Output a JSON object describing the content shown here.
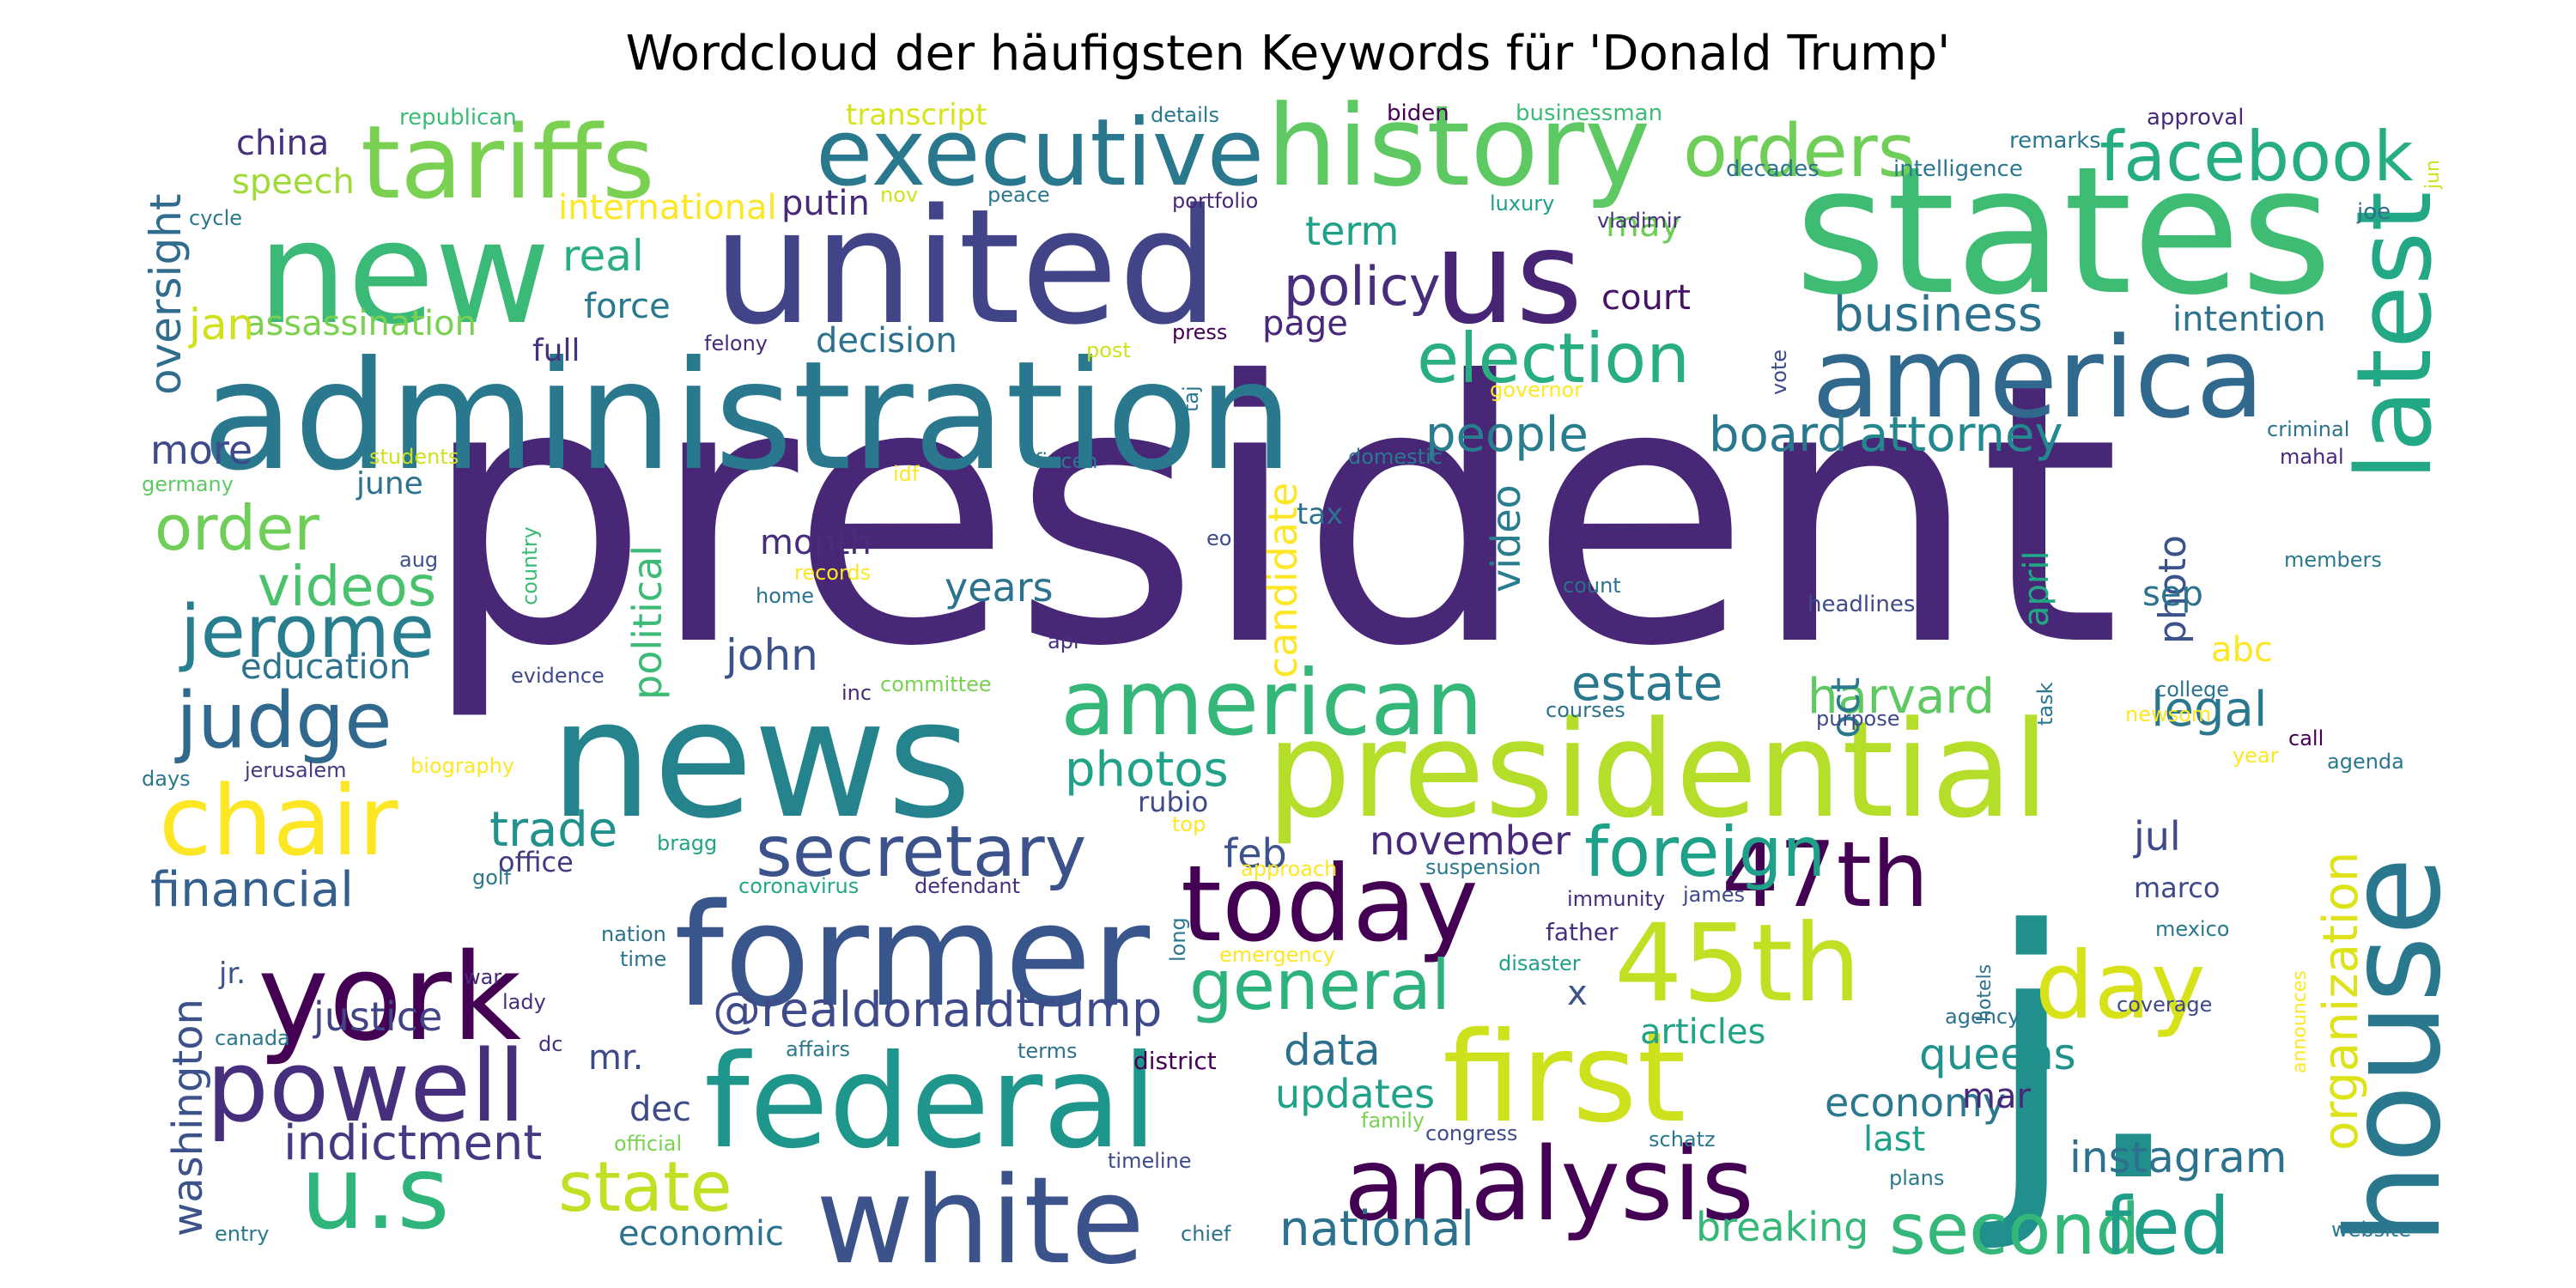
{
  "chart_data": {
    "type": "wordcloud",
    "title": "Wordcloud der häufigsten Keywords für 'Donald Trump'",
    "colormap": "viridis",
    "background": "#ffffff",
    "words": [
      {
        "text": "president",
        "weight": 100,
        "color": "#482777"
      },
      {
        "text": "states",
        "weight": 62,
        "color": "#3fbc73"
      },
      {
        "text": "news",
        "weight": 56,
        "color": "#25838e"
      },
      {
        "text": "united",
        "weight": 54,
        "color": "#414487"
      },
      {
        "text": "administration",
        "weight": 52,
        "color": "#2a788e"
      },
      {
        "text": "new",
        "weight": 50,
        "color": "#3aba76"
      },
      {
        "text": "former",
        "weight": 49,
        "color": "#39568c"
      },
      {
        "text": "presidential",
        "weight": 47,
        "color": "#b5de2b"
      },
      {
        "text": "j.",
        "weight": 60,
        "color": "#21908d"
      },
      {
        "text": "us",
        "weight": 46,
        "color": "#482475"
      },
      {
        "text": "federal",
        "weight": 45,
        "color": "#1f968b"
      },
      {
        "text": "house",
        "weight": 45,
        "color": "#2a788e"
      },
      {
        "text": "first",
        "weight": 44,
        "color": "#cde11d"
      },
      {
        "text": "york",
        "weight": 43,
        "color": "#440154"
      },
      {
        "text": "white",
        "weight": 42,
        "color": "#3b528b"
      },
      {
        "text": "history",
        "weight": 40,
        "color": "#5ec962"
      },
      {
        "text": "america",
        "weight": 39,
        "color": "#31688e"
      },
      {
        "text": "45th",
        "weight": 38,
        "color": "#c2df23"
      },
      {
        "text": "today",
        "weight": 37,
        "color": "#440154"
      },
      {
        "text": "tariffs",
        "weight": 36,
        "color": "#7ad151"
      },
      {
        "text": "u.s",
        "weight": 36,
        "color": "#2fb47c"
      },
      {
        "text": "analysis",
        "weight": 35,
        "color": "#440154"
      },
      {
        "text": "latest",
        "weight": 36,
        "color": "#22a884"
      },
      {
        "text": "powell",
        "weight": 35,
        "color": "#46307e"
      },
      {
        "text": "chair",
        "weight": 34,
        "color": "#fde725"
      },
      {
        "text": "executive",
        "weight": 33,
        "color": "#2a788e"
      },
      {
        "text": "day",
        "weight": 33,
        "color": "#d8e219"
      },
      {
        "text": "american",
        "weight": 32,
        "color": "#35b779"
      },
      {
        "text": "47th",
        "weight": 32,
        "color": "#440154"
      },
      {
        "text": "second",
        "weight": 25,
        "color": "#35b779"
      },
      {
        "text": "fed",
        "weight": 28,
        "color": "#1f9e89"
      },
      {
        "text": "judge",
        "weight": 27,
        "color": "#31688e"
      },
      {
        "text": "jerome",
        "weight": 26,
        "color": "#287d8e"
      },
      {
        "text": "secretary",
        "weight": 25,
        "color": "#3b528b"
      },
      {
        "text": "orders",
        "weight": 26,
        "color": "#6ece58"
      },
      {
        "text": "facebook",
        "weight": 24,
        "color": "#26ad81"
      },
      {
        "text": "election",
        "weight": 24,
        "color": "#29af7f"
      },
      {
        "text": "foreign",
        "weight": 24,
        "color": "#1fa088"
      },
      {
        "text": "state",
        "weight": 24,
        "color": "#c2df23"
      },
      {
        "text": "general",
        "weight": 24,
        "color": "#2db27d"
      },
      {
        "text": "order",
        "weight": 22,
        "color": "#6ece58"
      },
      {
        "text": "videos",
        "weight": 20,
        "color": "#4ac16d"
      },
      {
        "text": "policy",
        "weight": 19,
        "color": "#472d7b"
      },
      {
        "text": "@realdonaldtrump",
        "weight": 18,
        "color": "#3e4a89"
      },
      {
        "text": "indictment",
        "weight": 18,
        "color": "#443a83"
      },
      {
        "text": "national",
        "weight": 17,
        "color": "#2c728e"
      },
      {
        "text": "organization",
        "weight": 17,
        "color": "#dde318"
      },
      {
        "text": "business",
        "weight": 17,
        "color": "#2c728e"
      },
      {
        "text": "board",
        "weight": 17,
        "color": "#2a788e"
      },
      {
        "text": "attorney",
        "weight": 17,
        "color": "#23898e"
      },
      {
        "text": "people",
        "weight": 17,
        "color": "#287d8e"
      },
      {
        "text": "trade",
        "weight": 17,
        "color": "#21918c"
      },
      {
        "text": "photos",
        "weight": 17,
        "color": "#1fa287"
      },
      {
        "text": "financial",
        "weight": 17,
        "color": "#355f8d"
      },
      {
        "text": "estate",
        "weight": 17,
        "color": "#2a788e"
      },
      {
        "text": "harvard",
        "weight": 17,
        "color": "#5ec962"
      },
      {
        "text": "legal",
        "weight": 17,
        "color": "#2a788e"
      },
      {
        "text": "queens",
        "weight": 15,
        "color": "#21918c"
      },
      {
        "text": "instagram",
        "weight": 15,
        "color": "#2c728e"
      },
      {
        "text": "breaking",
        "weight": 14,
        "color": "#35b779"
      },
      {
        "text": "data",
        "weight": 15,
        "color": "#2d708e"
      },
      {
        "text": "updates",
        "weight": 14,
        "color": "#1fa287"
      },
      {
        "text": "november",
        "weight": 14,
        "color": "#472a7a"
      },
      {
        "text": "washington",
        "weight": 14,
        "color": "#3b528b"
      },
      {
        "text": "justice",
        "weight": 14,
        "color": "#414487"
      },
      {
        "text": "economy",
        "weight": 14,
        "color": "#2a788e"
      },
      {
        "text": "oversight",
        "weight": 15,
        "color": "#2f6c8e"
      },
      {
        "text": "political",
        "weight": 14,
        "color": "#3bbb75"
      },
      {
        "text": "candidate",
        "weight": 14,
        "color": "#fde725"
      },
      {
        "text": "video",
        "weight": 14,
        "color": "#287d8e"
      },
      {
        "text": "real",
        "weight": 15,
        "color": "#29af7f"
      },
      {
        "text": "term",
        "weight": 14,
        "color": "#1fa088"
      },
      {
        "text": "john",
        "weight": 14,
        "color": "#3b528b"
      },
      {
        "text": "years",
        "weight": 14,
        "color": "#2c728e"
      },
      {
        "text": "month",
        "weight": 12,
        "color": "#472d7b"
      },
      {
        "text": "education",
        "weight": 12,
        "color": "#2c728e"
      },
      {
        "text": "international",
        "weight": 11,
        "color": "#fde725"
      },
      {
        "text": "assassination",
        "weight": 11,
        "color": "#7ad151"
      },
      {
        "text": "decision",
        "weight": 11,
        "color": "#2c728e"
      },
      {
        "text": "force",
        "weight": 11,
        "color": "#2a788e"
      },
      {
        "text": "court",
        "weight": 11,
        "color": "#471365"
      },
      {
        "text": "page",
        "weight": 11,
        "color": "#482878"
      },
      {
        "text": "more",
        "weight": 13,
        "color": "#3e4a89"
      },
      {
        "text": "jan",
        "weight": 13,
        "color": "#d0e11c"
      },
      {
        "text": "feb",
        "weight": 12,
        "color": "#3b528b"
      },
      {
        "text": "oct",
        "weight": 12,
        "color": "#2a788e"
      },
      {
        "text": "jul",
        "weight": 11,
        "color": "#3e4a89"
      },
      {
        "text": "dec",
        "weight": 11,
        "color": "#3e4a89"
      },
      {
        "text": "mar",
        "weight": 11,
        "color": "#482878"
      },
      {
        "text": "last",
        "weight": 11,
        "color": "#1fa088"
      },
      {
        "text": "mr.",
        "weight": 11,
        "color": "#3e4a89"
      },
      {
        "text": "economic",
        "weight": 11,
        "color": "#2c728e"
      },
      {
        "text": "photo",
        "weight": 12,
        "color": "#3b528b"
      },
      {
        "text": "april",
        "weight": 11,
        "color": "#22a884"
      },
      {
        "text": "china",
        "weight": 10,
        "color": "#46307e"
      },
      {
        "text": "speech",
        "weight": 10,
        "color": "#a0da39"
      },
      {
        "text": "putin",
        "weight": 10,
        "color": "#482878"
      },
      {
        "text": "may",
        "weight": 10,
        "color": "#6ece58"
      },
      {
        "text": "intention",
        "weight": 10,
        "color": "#2c728e"
      },
      {
        "text": "full",
        "weight": 10,
        "color": "#46307e"
      },
      {
        "text": "june",
        "weight": 10,
        "color": "#2c728e"
      },
      {
        "text": "sep",
        "weight": 10,
        "color": "#2c728e"
      },
      {
        "text": "abc",
        "weight": 10,
        "color": "#fde725"
      },
      {
        "text": "marco",
        "weight": 9,
        "color": "#3e4a89"
      },
      {
        "text": "tax",
        "weight": 9,
        "color": "#2c728e"
      },
      {
        "text": "office",
        "weight": 9,
        "color": "#443a83"
      },
      {
        "text": "rubio",
        "weight": 8,
        "color": "#3e4a89"
      },
      {
        "text": "articles",
        "weight": 10,
        "color": "#20a386"
      },
      {
        "text": "x",
        "weight": 10,
        "color": "#3b528b"
      },
      {
        "text": "jr.",
        "weight": 8,
        "color": "#3b528b"
      },
      {
        "text": "transcript",
        "weight": 7,
        "color": "#d8e219"
      },
      {
        "text": "republican",
        "weight": 6,
        "color": "#3bbb75"
      },
      {
        "text": "biden",
        "weight": 6,
        "color": "#440154"
      },
      {
        "text": "businessman",
        "weight": 6,
        "color": "#3bbb75"
      },
      {
        "text": "details",
        "weight": 6,
        "color": "#2a788e"
      },
      {
        "text": "approval",
        "weight": 6,
        "color": "#482878"
      },
      {
        "text": "remarks",
        "weight": 6,
        "color": "#2a788e"
      },
      {
        "text": "decades",
        "weight": 6,
        "color": "#2c728e"
      },
      {
        "text": "intelligence",
        "weight": 6,
        "color": "#2a788e"
      },
      {
        "text": "joe",
        "weight": 6,
        "color": "#2c728e"
      },
      {
        "text": "jun",
        "weight": 5,
        "color": "#cde11d"
      },
      {
        "text": "cycle",
        "weight": 5,
        "color": "#2a788e"
      },
      {
        "text": "nov",
        "weight": 5,
        "color": "#d0e11c"
      },
      {
        "text": "peace",
        "weight": 5,
        "color": "#2a788e"
      },
      {
        "text": "portfolio",
        "weight": 5,
        "color": "#482878"
      },
      {
        "text": "luxury",
        "weight": 5,
        "color": "#1f9e89"
      },
      {
        "text": "vladimir",
        "weight": 5,
        "color": "#46307e"
      },
      {
        "text": "felony",
        "weight": 5,
        "color": "#472a7a"
      },
      {
        "text": "post",
        "weight": 5,
        "color": "#d0e11c"
      },
      {
        "text": "press",
        "weight": 5,
        "color": "#440154"
      },
      {
        "text": "taj",
        "weight": 5,
        "color": "#2a788e"
      },
      {
        "text": "governor",
        "weight": 5,
        "color": "#fde725"
      },
      {
        "text": "vote",
        "weight": 5,
        "color": "#3e4a89"
      },
      {
        "text": "criminal",
        "weight": 5,
        "color": "#2c728e"
      },
      {
        "text": "mahal",
        "weight": 5,
        "color": "#482878"
      },
      {
        "text": "members",
        "weight": 5,
        "color": "#2a788e"
      },
      {
        "text": "students",
        "weight": 5,
        "color": "#cde11d"
      },
      {
        "text": "germany",
        "weight": 5,
        "color": "#5ec962"
      },
      {
        "text": "idf",
        "weight": 5,
        "color": "#fde725"
      },
      {
        "text": "fincen",
        "weight": 5,
        "color": "#2a788e"
      },
      {
        "text": "domestic",
        "weight": 5,
        "color": "#2a788e"
      },
      {
        "text": "aug",
        "weight": 5,
        "color": "#3b528b"
      },
      {
        "text": "eo",
        "weight": 5,
        "color": "#3e4a89"
      },
      {
        "text": "country",
        "weight": 5,
        "color": "#3bbb75"
      },
      {
        "text": "records",
        "weight": 5,
        "color": "#fde725"
      },
      {
        "text": "home",
        "weight": 5,
        "color": "#2c728e"
      },
      {
        "text": "apr",
        "weight": 5,
        "color": "#46307e"
      },
      {
        "text": "count",
        "weight": 5,
        "color": "#2c728e"
      },
      {
        "text": "headlines",
        "weight": 5,
        "color": "#3e4a89"
      },
      {
        "text": "evidence",
        "weight": 5,
        "color": "#3e4a89"
      },
      {
        "text": "inc",
        "weight": 5,
        "color": "#482878"
      },
      {
        "text": "committee",
        "weight": 5,
        "color": "#7ad151"
      },
      {
        "text": "courses",
        "weight": 5,
        "color": "#2c728e"
      },
      {
        "text": "task",
        "weight": 5,
        "color": "#2a788e"
      },
      {
        "text": "purpose",
        "weight": 5,
        "color": "#3e4a89"
      },
      {
        "text": "college",
        "weight": 5,
        "color": "#2c728e"
      },
      {
        "text": "newsom",
        "weight": 5,
        "color": "#fde725"
      },
      {
        "text": "call",
        "weight": 5,
        "color": "#440154"
      },
      {
        "text": "agenda",
        "weight": 5,
        "color": "#2a788e"
      },
      {
        "text": "days",
        "weight": 5,
        "color": "#2a788e"
      },
      {
        "text": "jerusalem",
        "weight": 5,
        "color": "#443a83"
      },
      {
        "text": "biography",
        "weight": 5,
        "color": "#fde725"
      },
      {
        "text": "year",
        "weight": 5,
        "color": "#fde725"
      },
      {
        "text": "bragg",
        "weight": 5,
        "color": "#20a386"
      },
      {
        "text": "top",
        "weight": 5,
        "color": "#fde725"
      },
      {
        "text": "approach",
        "weight": 5,
        "color": "#fde725"
      },
      {
        "text": "suspension",
        "weight": 5,
        "color": "#2a788e"
      },
      {
        "text": "golf",
        "weight": 5,
        "color": "#2a788e"
      },
      {
        "text": "coronavirus",
        "weight": 5,
        "color": "#22a884"
      },
      {
        "text": "defendant",
        "weight": 5,
        "color": "#46307e"
      },
      {
        "text": "immunity",
        "weight": 5,
        "color": "#46307e"
      },
      {
        "text": "james",
        "weight": 5,
        "color": "#3e4a89"
      },
      {
        "text": "nation",
        "weight": 5,
        "color": "#2c728e"
      },
      {
        "text": "long",
        "weight": 5,
        "color": "#2a788e"
      },
      {
        "text": "father",
        "weight": 6,
        "color": "#46307e"
      },
      {
        "text": "mexico",
        "weight": 5,
        "color": "#2a788e"
      },
      {
        "text": "time",
        "weight": 5,
        "color": "#2c728e"
      },
      {
        "text": "emergency",
        "weight": 5,
        "color": "#fde725"
      },
      {
        "text": "disaster",
        "weight": 5,
        "color": "#1fa088"
      },
      {
        "text": "hotels",
        "weight": 5,
        "color": "#2c728e"
      },
      {
        "text": "war",
        "weight": 5,
        "color": "#482878"
      },
      {
        "text": "lady",
        "weight": 5,
        "color": "#46307e"
      },
      {
        "text": "agency",
        "weight": 5,
        "color": "#2c728e"
      },
      {
        "text": "coverage",
        "weight": 5,
        "color": "#3e4a89"
      },
      {
        "text": "canada",
        "weight": 5,
        "color": "#2a788e"
      },
      {
        "text": "dc",
        "weight": 5,
        "color": "#46307e"
      },
      {
        "text": "affairs",
        "weight": 5,
        "color": "#2a788e"
      },
      {
        "text": "terms",
        "weight": 5,
        "color": "#2c728e"
      },
      {
        "text": "district",
        "weight": 6,
        "color": "#440154"
      },
      {
        "text": "announces",
        "weight": 5,
        "color": "#fde725"
      },
      {
        "text": "family",
        "weight": 5,
        "color": "#7ad151"
      },
      {
        "text": "congress",
        "weight": 5,
        "color": "#3e4a89"
      },
      {
        "text": "official",
        "weight": 5,
        "color": "#7ad151"
      },
      {
        "text": "schatz",
        "weight": 5,
        "color": "#2a788e"
      },
      {
        "text": "timeline",
        "weight": 5,
        "color": "#3e4a89"
      },
      {
        "text": "plans",
        "weight": 5,
        "color": "#2a788e"
      },
      {
        "text": "entry",
        "weight": 5,
        "color": "#2a788e"
      },
      {
        "text": "chief",
        "weight": 5,
        "color": "#2c728e"
      },
      {
        "text": "website",
        "weight": 5,
        "color": "#2a788e"
      }
    ]
  }
}
